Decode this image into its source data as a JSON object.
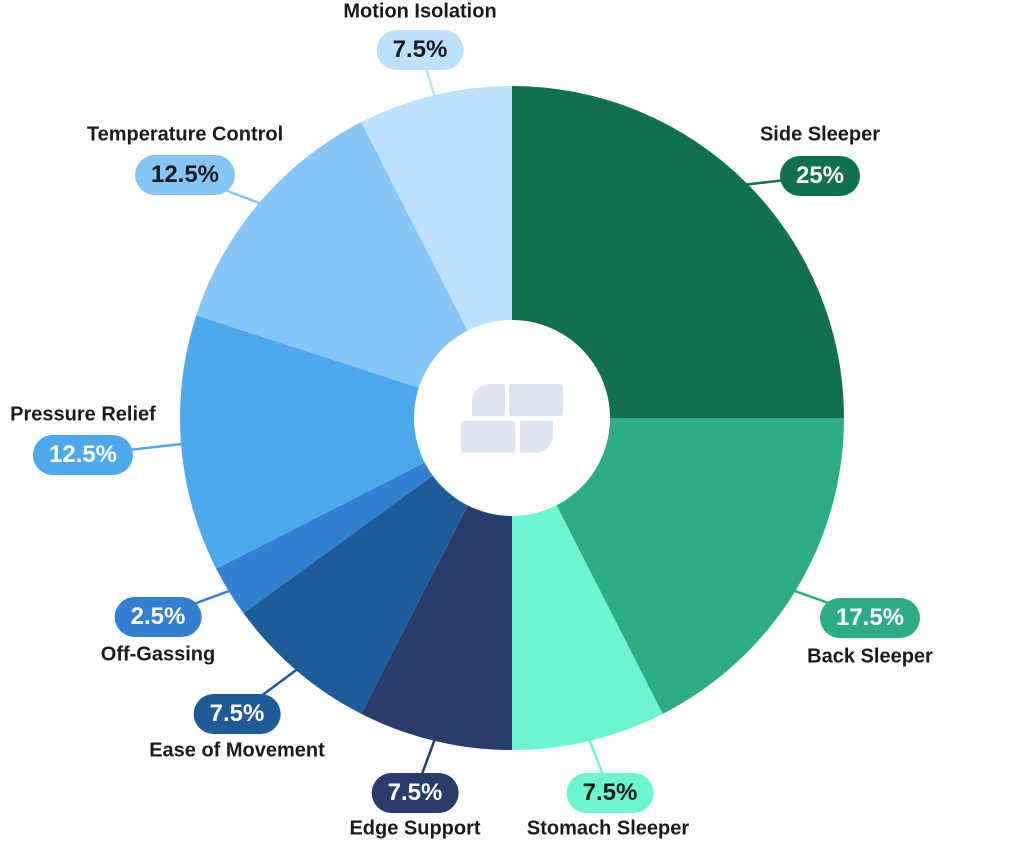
{
  "chart_data": {
    "type": "pie",
    "donut": true,
    "start": "top, clockwise",
    "slices": [
      {
        "label": "Side Sleeper",
        "value": 25,
        "display": "25%",
        "color": "#0f7052",
        "text_color": "#ffffff"
      },
      {
        "label": "Back Sleeper",
        "value": 17.5,
        "display": "17.5%",
        "color": "#2eab87",
        "text_color": "#ffffff"
      },
      {
        "label": "Stomach Sleeper",
        "value": 7.5,
        "display": "7.5%",
        "color": "#6cf5cf",
        "text_color": "#1b1b1b"
      },
      {
        "label": "Edge Support",
        "value": 7.5,
        "display": "7.5%",
        "color": "#283d6b",
        "text_color": "#ffffff"
      },
      {
        "label": "Ease of Movement",
        "value": 7.5,
        "display": "7.5%",
        "color": "#1f5a99",
        "text_color": "#ffffff"
      },
      {
        "label": "Off-Gassing",
        "value": 2.5,
        "display": "2.5%",
        "color": "#337fd0",
        "text_color": "#ffffff"
      },
      {
        "label": "Pressure Relief",
        "value": 12.5,
        "display": "12.5%",
        "color": "#4ea8ec",
        "text_color": "#ffffff"
      },
      {
        "label": "Temperature Control",
        "value": 12.5,
        "display": "12.5%",
        "color": "#86c5f5",
        "text_color": "#1b1b1b"
      },
      {
        "label": "Motion Isolation",
        "value": 7.5,
        "display": "7.5%",
        "color": "#bde1fc",
        "text_color": "#1b1b1b"
      }
    ],
    "center_icon": "brand-logo-icon"
  }
}
